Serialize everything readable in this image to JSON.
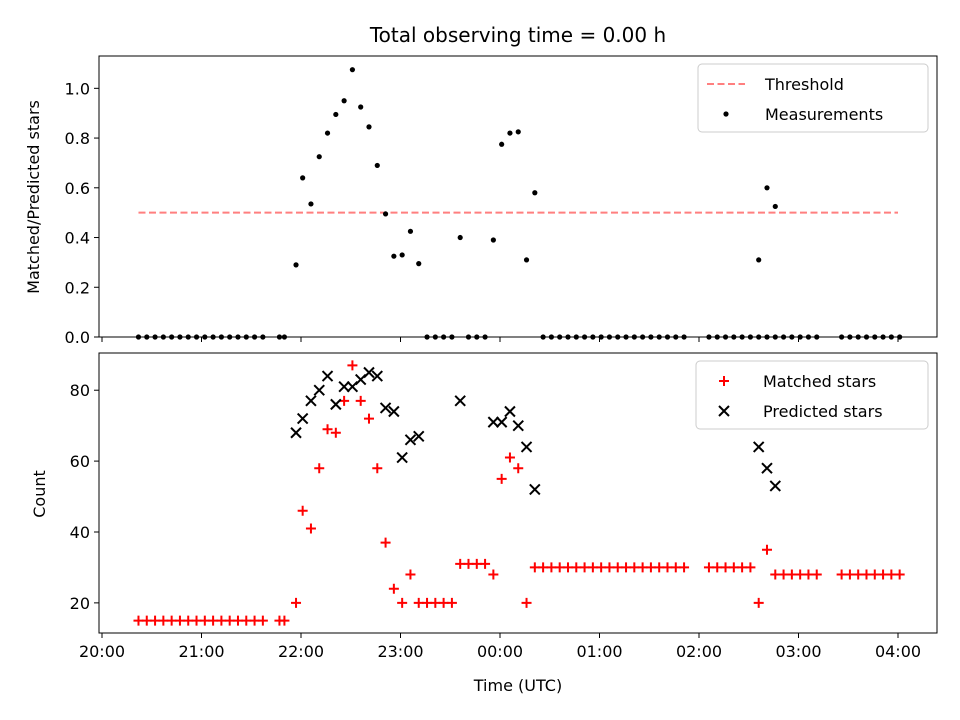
{
  "chart_data": [
    {
      "type": "scatter",
      "title": "Total observing time = 0.00 h",
      "ylabel": "Matched/Predicted stars",
      "xlabel": "",
      "x_tick_labels": [
        "",
        "",
        "",
        "",
        "",
        "",
        "",
        "",
        ""
      ],
      "ylim": [
        0,
        1.13
      ],
      "y_ticks": [
        0.0,
        0.2,
        0.4,
        0.6,
        0.8,
        1.0
      ],
      "y_tick_labels": [
        "0.0",
        "0.2",
        "0.4",
        "0.6",
        "0.8",
        "1.0"
      ],
      "legend": {
        "placement": "upper right",
        "entries": [
          "Threshold",
          "Measurements"
        ]
      },
      "series": [
        {
          "name": "Threshold",
          "kind": "line",
          "color": "#ff7f7f",
          "dashed": true,
          "points": [
            [
              "20:22",
              0.5
            ],
            [
              "04:00",
              0.5
            ]
          ]
        },
        {
          "name": "Measurements",
          "kind": "dots",
          "color": "#000000",
          "points": [
            [
              "20:22",
              0
            ],
            [
              "20:27",
              0
            ],
            [
              "20:32",
              0
            ],
            [
              "20:37",
              0
            ],
            [
              "20:42",
              0
            ],
            [
              "20:47",
              0
            ],
            [
              "20:52",
              0
            ],
            [
              "20:57",
              0
            ],
            [
              "21:02",
              0
            ],
            [
              "21:07",
              0
            ],
            [
              "21:12",
              0
            ],
            [
              "21:17",
              0
            ],
            [
              "21:22",
              0
            ],
            [
              "21:27",
              0
            ],
            [
              "21:32",
              0
            ],
            [
              "21:37",
              0
            ],
            [
              "21:47",
              0
            ],
            [
              "21:50",
              0
            ],
            [
              "21:57",
              0.29
            ],
            [
              "22:01",
              0.64
            ],
            [
              "22:06",
              0.535
            ],
            [
              "22:11",
              0.725
            ],
            [
              "22:16",
              0.82
            ],
            [
              "22:21",
              0.895
            ],
            [
              "22:26",
              0.95
            ],
            [
              "22:31",
              1.075
            ],
            [
              "22:36",
              0.925
            ],
            [
              "22:41",
              0.845
            ],
            [
              "22:46",
              0.69
            ],
            [
              "22:51",
              0.495
            ],
            [
              "22:56",
              0.325
            ],
            [
              "23:01",
              0.33
            ],
            [
              "23:06",
              0.425
            ],
            [
              "23:11",
              0.295
            ],
            [
              "23:16",
              0
            ],
            [
              "23:21",
              0
            ],
            [
              "23:26",
              0
            ],
            [
              "23:31",
              0
            ],
            [
              "23:36",
              0.4
            ],
            [
              "23:41",
              0
            ],
            [
              "23:46",
              0
            ],
            [
              "23:51",
              0
            ],
            [
              "23:56",
              0.39
            ],
            [
              "00:01",
              0.775
            ],
            [
              "00:06",
              0.82
            ],
            [
              "00:11",
              0.825
            ],
            [
              "00:16",
              0.31
            ],
            [
              "00:21",
              0.58
            ],
            [
              "00:26",
              0
            ],
            [
              "00:31",
              0
            ],
            [
              "00:36",
              0
            ],
            [
              "00:41",
              0
            ],
            [
              "00:46",
              0
            ],
            [
              "00:51",
              0
            ],
            [
              "00:56",
              0
            ],
            [
              "01:01",
              0
            ],
            [
              "01:06",
              0
            ],
            [
              "01:11",
              0
            ],
            [
              "01:16",
              0
            ],
            [
              "01:21",
              0
            ],
            [
              "01:26",
              0
            ],
            [
              "01:31",
              0
            ],
            [
              "01:36",
              0
            ],
            [
              "01:41",
              0
            ],
            [
              "01:46",
              0
            ],
            [
              "01:51",
              0
            ],
            [
              "02:06",
              0
            ],
            [
              "02:11",
              0
            ],
            [
              "02:16",
              0
            ],
            [
              "02:21",
              0
            ],
            [
              "02:26",
              0
            ],
            [
              "02:31",
              0
            ],
            [
              "02:36",
              0
            ],
            [
              "02:41",
              0
            ],
            [
              "02:46",
              0
            ],
            [
              "02:36",
              0.31
            ],
            [
              "02:41",
              0.6
            ],
            [
              "02:46",
              0.525
            ],
            [
              "02:51",
              0
            ],
            [
              "02:56",
              0
            ],
            [
              "03:01",
              0
            ],
            [
              "03:06",
              0
            ],
            [
              "03:11",
              0
            ],
            [
              "03:26",
              0
            ],
            [
              "03:31",
              0
            ],
            [
              "03:36",
              0
            ],
            [
              "03:41",
              0
            ],
            [
              "03:46",
              0
            ],
            [
              "03:51",
              0
            ],
            [
              "03:56",
              0
            ],
            [
              "04:01",
              0
            ]
          ]
        }
      ]
    },
    {
      "type": "scatter",
      "title": "",
      "xlabel": "Time (UTC)",
      "ylabel": "Count",
      "x_ticks": [
        "20:00",
        "21:00",
        "22:00",
        "23:00",
        "00:00",
        "01:00",
        "02:00",
        "03:00",
        "04:00"
      ],
      "x_tick_labels": [
        "20:00",
        "21:00",
        "22:00",
        "23:00",
        "00:00",
        "01:00",
        "02:00",
        "03:00",
        "04:00"
      ],
      "ylim": [
        11.5,
        90.5
      ],
      "y_ticks": [
        20,
        40,
        60,
        80
      ],
      "y_tick_labels": [
        "20",
        "40",
        "60",
        "80"
      ],
      "legend": {
        "placement": "upper right",
        "entries": [
          "Matched stars",
          "Predicted stars"
        ]
      },
      "series": [
        {
          "name": "Matched stars",
          "kind": "plus",
          "color": "#ff0000",
          "points": [
            [
              "20:22",
              15
            ],
            [
              "20:27",
              15
            ],
            [
              "20:32",
              15
            ],
            [
              "20:37",
              15
            ],
            [
              "20:42",
              15
            ],
            [
              "20:47",
              15
            ],
            [
              "20:52",
              15
            ],
            [
              "20:57",
              15
            ],
            [
              "21:02",
              15
            ],
            [
              "21:07",
              15
            ],
            [
              "21:12",
              15
            ],
            [
              "21:17",
              15
            ],
            [
              "21:22",
              15
            ],
            [
              "21:27",
              15
            ],
            [
              "21:32",
              15
            ],
            [
              "21:37",
              15
            ],
            [
              "21:47",
              15
            ],
            [
              "21:50",
              15
            ],
            [
              "21:57",
              20
            ],
            [
              "22:01",
              46
            ],
            [
              "22:06",
              41
            ],
            [
              "22:11",
              58
            ],
            [
              "22:16",
              69
            ],
            [
              "22:21",
              68
            ],
            [
              "22:26",
              77
            ],
            [
              "22:31",
              87
            ],
            [
              "22:36",
              77
            ],
            [
              "22:41",
              72
            ],
            [
              "22:46",
              58
            ],
            [
              "22:51",
              37
            ],
            [
              "22:56",
              24
            ],
            [
              "23:01",
              20
            ],
            [
              "23:06",
              28
            ],
            [
              "23:11",
              20
            ],
            [
              "23:16",
              20
            ],
            [
              "23:21",
              20
            ],
            [
              "23:26",
              20
            ],
            [
              "23:31",
              20
            ],
            [
              "23:36",
              31
            ],
            [
              "23:41",
              31
            ],
            [
              "23:46",
              31
            ],
            [
              "23:51",
              31
            ],
            [
              "23:56",
              28
            ],
            [
              "00:01",
              55
            ],
            [
              "00:06",
              61
            ],
            [
              "00:11",
              58
            ],
            [
              "00:16",
              20
            ],
            [
              "00:21",
              30
            ],
            [
              "00:26",
              30
            ],
            [
              "00:31",
              30
            ],
            [
              "00:36",
              30
            ],
            [
              "00:41",
              30
            ],
            [
              "00:46",
              30
            ],
            [
              "00:51",
              30
            ],
            [
              "00:56",
              30
            ],
            [
              "01:01",
              30
            ],
            [
              "01:06",
              30
            ],
            [
              "01:11",
              30
            ],
            [
              "01:16",
              30
            ],
            [
              "01:21",
              30
            ],
            [
              "01:26",
              30
            ],
            [
              "01:31",
              30
            ],
            [
              "01:36",
              30
            ],
            [
              "01:41",
              30
            ],
            [
              "01:46",
              30
            ],
            [
              "01:51",
              30
            ],
            [
              "02:06",
              30
            ],
            [
              "02:11",
              30
            ],
            [
              "02:16",
              30
            ],
            [
              "02:21",
              30
            ],
            [
              "02:26",
              30
            ],
            [
              "02:31",
              30
            ],
            [
              "02:36",
              20
            ],
            [
              "02:41",
              35
            ],
            [
              "02:46",
              28
            ],
            [
              "02:51",
              28
            ],
            [
              "02:56",
              28
            ],
            [
              "03:01",
              28
            ],
            [
              "03:06",
              28
            ],
            [
              "03:11",
              28
            ],
            [
              "03:26",
              28
            ],
            [
              "03:31",
              28
            ],
            [
              "03:36",
              28
            ],
            [
              "03:41",
              28
            ],
            [
              "03:46",
              28
            ],
            [
              "03:51",
              28
            ],
            [
              "03:56",
              28
            ],
            [
              "04:01",
              28
            ]
          ]
        },
        {
          "name": "Predicted stars",
          "kind": "x",
          "color": "#000000",
          "points": [
            [
              "21:57",
              68
            ],
            [
              "22:01",
              72
            ],
            [
              "22:06",
              77
            ],
            [
              "22:11",
              80
            ],
            [
              "22:16",
              84
            ],
            [
              "22:21",
              76
            ],
            [
              "22:26",
              81
            ],
            [
              "22:31",
              81
            ],
            [
              "22:36",
              83
            ],
            [
              "22:41",
              85
            ],
            [
              "22:46",
              84
            ],
            [
              "22:51",
              75
            ],
            [
              "22:56",
              74
            ],
            [
              "23:01",
              61
            ],
            [
              "23:06",
              66
            ],
            [
              "23:11",
              67
            ],
            [
              "23:36",
              77
            ],
            [
              "23:56",
              71
            ],
            [
              "00:01",
              71
            ],
            [
              "00:06",
              74
            ],
            [
              "00:11",
              70
            ],
            [
              "00:16",
              64
            ],
            [
              "00:21",
              52
            ],
            [
              "02:36",
              64
            ],
            [
              "02:41",
              58
            ],
            [
              "02:46",
              53
            ]
          ]
        }
      ]
    }
  ]
}
